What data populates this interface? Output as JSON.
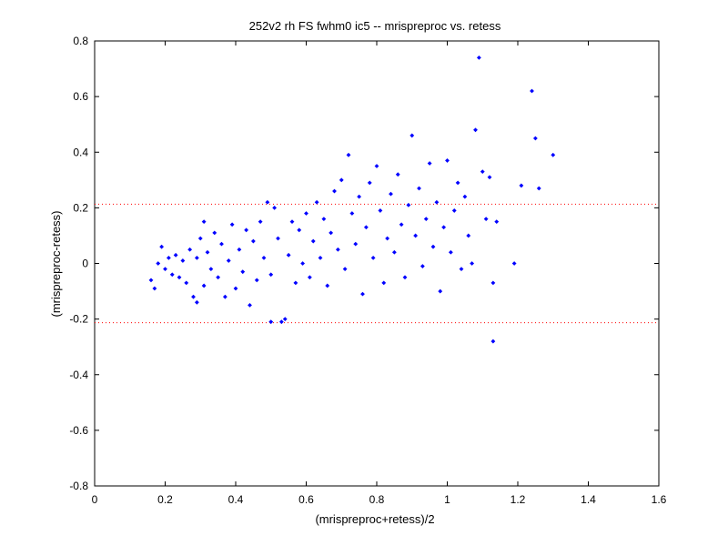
{
  "chart_data": {
    "type": "scatter",
    "title": "252v2 rh FS fwhm0 ic5 -- mrispreproc vs. retess",
    "xlabel": "(mrispreproc+retess)/2",
    "ylabel": "(mrispreproc-retess)",
    "xlim": [
      0,
      1.6
    ],
    "ylim": [
      -0.8,
      0.8
    ],
    "xticks": [
      "0",
      "0.2",
      "0.4",
      "0.6",
      "0.8",
      "1",
      "1.2",
      "1.4",
      "1.6"
    ],
    "yticks": [
      "0.8",
      "0.6",
      "0.4",
      "0.2",
      "0",
      "-0.2",
      "-0.4",
      "-0.6",
      "-0.8"
    ],
    "grid": false,
    "marker_color": "#0000ff",
    "reference_line_color": "#ff0000",
    "reference_lines_y": [
      0.213,
      -0.213
    ],
    "series": [
      {
        "points": [
          [
            0.16,
            -0.06
          ],
          [
            0.17,
            -0.09
          ],
          [
            0.18,
            0.0
          ],
          [
            0.19,
            0.06
          ],
          [
            0.2,
            -0.02
          ],
          [
            0.21,
            0.02
          ],
          [
            0.22,
            -0.04
          ],
          [
            0.23,
            0.03
          ],
          [
            0.24,
            -0.05
          ],
          [
            0.25,
            0.01
          ],
          [
            0.26,
            -0.07
          ],
          [
            0.27,
            0.05
          ],
          [
            0.28,
            -0.12
          ],
          [
            0.29,
            -0.14
          ],
          [
            0.29,
            0.02
          ],
          [
            0.3,
            0.09
          ],
          [
            0.31,
            -0.08
          ],
          [
            0.31,
            0.15
          ],
          [
            0.32,
            0.04
          ],
          [
            0.33,
            -0.02
          ],
          [
            0.34,
            0.11
          ],
          [
            0.35,
            -0.05
          ],
          [
            0.36,
            0.07
          ],
          [
            0.37,
            -0.12
          ],
          [
            0.38,
            0.01
          ],
          [
            0.39,
            0.14
          ],
          [
            0.4,
            -0.09
          ],
          [
            0.41,
            0.05
          ],
          [
            0.42,
            -0.03
          ],
          [
            0.43,
            0.12
          ],
          [
            0.44,
            -0.15
          ],
          [
            0.45,
            0.08
          ],
          [
            0.46,
            -0.06
          ],
          [
            0.47,
            0.15
          ],
          [
            0.48,
            0.02
          ],
          [
            0.49,
            0.22
          ],
          [
            0.5,
            -0.04
          ],
          [
            0.51,
            0.2
          ],
          [
            0.5,
            -0.21
          ],
          [
            0.52,
            0.09
          ],
          [
            0.53,
            -0.21
          ],
          [
            0.54,
            -0.2
          ],
          [
            0.55,
            0.03
          ],
          [
            0.56,
            0.15
          ],
          [
            0.57,
            -0.07
          ],
          [
            0.58,
            0.12
          ],
          [
            0.59,
            0.0
          ],
          [
            0.6,
            0.18
          ],
          [
            0.61,
            -0.05
          ],
          [
            0.62,
            0.08
          ],
          [
            0.63,
            0.22
          ],
          [
            0.64,
            0.02
          ],
          [
            0.65,
            0.16
          ],
          [
            0.66,
            -0.08
          ],
          [
            0.67,
            0.11
          ],
          [
            0.68,
            0.26
          ],
          [
            0.69,
            0.05
          ],
          [
            0.7,
            0.3
          ],
          [
            0.71,
            -0.02
          ],
          [
            0.72,
            0.39
          ],
          [
            0.73,
            0.18
          ],
          [
            0.74,
            0.07
          ],
          [
            0.75,
            0.24
          ],
          [
            0.76,
            -0.11
          ],
          [
            0.77,
            0.13
          ],
          [
            0.78,
            0.29
          ],
          [
            0.79,
            0.02
          ],
          [
            0.8,
            0.35
          ],
          [
            0.81,
            0.19
          ],
          [
            0.82,
            -0.07
          ],
          [
            0.83,
            0.09
          ],
          [
            0.84,
            0.25
          ],
          [
            0.85,
            0.04
          ],
          [
            0.86,
            0.32
          ],
          [
            0.87,
            0.14
          ],
          [
            0.88,
            -0.05
          ],
          [
            0.89,
            0.21
          ],
          [
            0.9,
            0.46
          ],
          [
            0.91,
            0.1
          ],
          [
            0.92,
            0.27
          ],
          [
            0.93,
            -0.01
          ],
          [
            0.94,
            0.16
          ],
          [
            0.95,
            0.36
          ],
          [
            0.96,
            0.06
          ],
          [
            0.97,
            0.22
          ],
          [
            0.98,
            -0.1
          ],
          [
            0.99,
            0.13
          ],
          [
            1.0,
            0.37
          ],
          [
            1.01,
            0.04
          ],
          [
            1.02,
            0.19
          ],
          [
            1.03,
            0.29
          ],
          [
            1.04,
            -0.02
          ],
          [
            1.05,
            0.24
          ],
          [
            1.06,
            0.1
          ],
          [
            1.07,
            0.0
          ],
          [
            1.08,
            0.48
          ],
          [
            1.09,
            0.74
          ],
          [
            1.1,
            0.33
          ],
          [
            1.11,
            0.16
          ],
          [
            1.12,
            0.31
          ],
          [
            1.13,
            -0.28
          ],
          [
            1.13,
            -0.07
          ],
          [
            1.14,
            0.15
          ],
          [
            1.19,
            0.0
          ],
          [
            1.21,
            0.28
          ],
          [
            1.24,
            0.62
          ],
          [
            1.25,
            0.45
          ],
          [
            1.26,
            0.27
          ],
          [
            1.3,
            0.39
          ]
        ]
      }
    ]
  }
}
